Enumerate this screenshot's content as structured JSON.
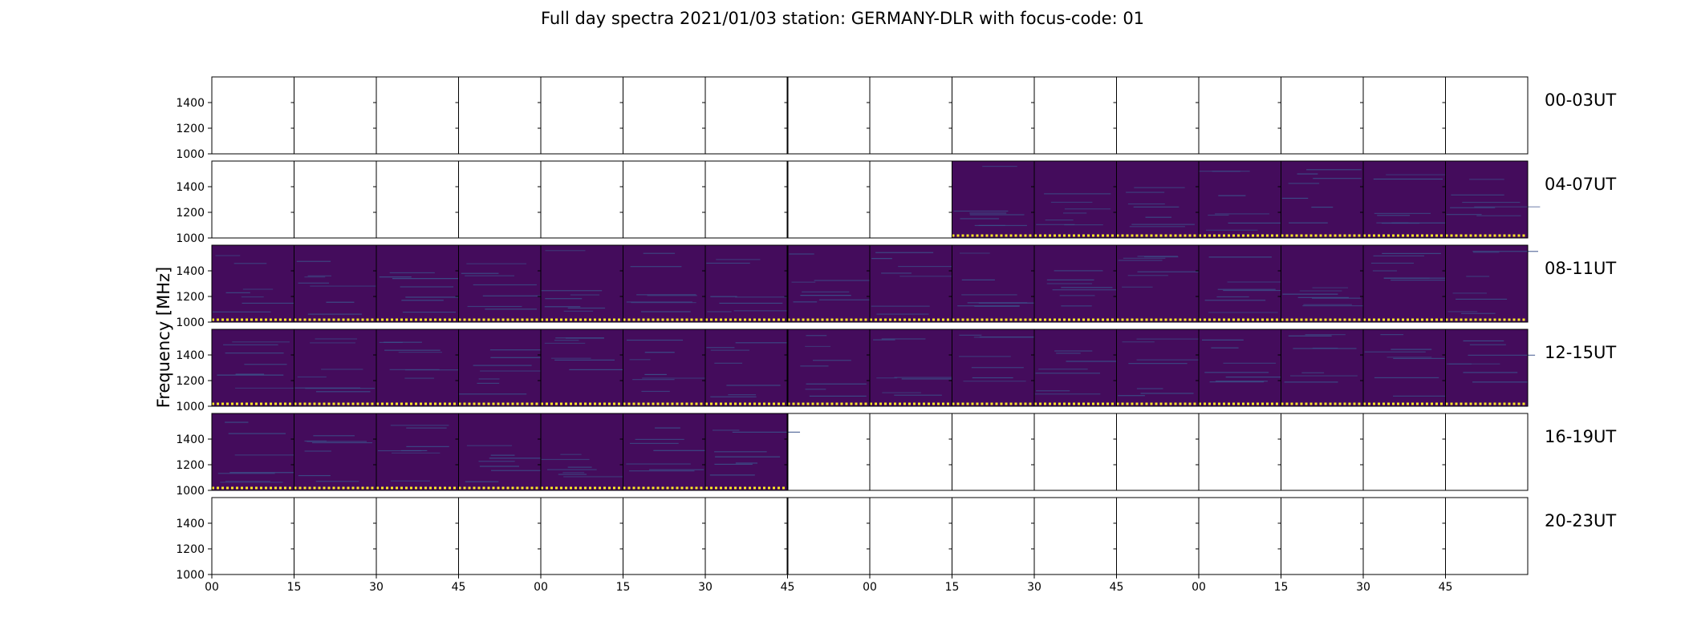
{
  "chart_data": {
    "type": "heatmap",
    "title": "Full day spectra 2021/01/03 station: GERMANY-DLR with focus-code: 01",
    "ylabel": "Frequency [MHz]",
    "xlabel": "",
    "ylim": [
      1000,
      1600
    ],
    "yticks": [
      1000,
      1200,
      1400
    ],
    "xtick_labels": [
      "00",
      "15",
      "30",
      "45",
      "00",
      "15",
      "30",
      "45",
      "00",
      "15",
      "30",
      "45",
      "00",
      "15",
      "30",
      "45"
    ],
    "panels_per_row": 16,
    "minutes_per_panel": 15,
    "colormap": "viridis",
    "colors": {
      "background": "#440c5c",
      "low_band": "#fde725",
      "line": "#3b528b"
    },
    "rows": [
      {
        "label": "00-03UT",
        "data_start_panel": null,
        "data_end_panel": null
      },
      {
        "label": "04-07UT",
        "data_start_panel": 9,
        "data_end_panel": 16
      },
      {
        "label": "08-11UT",
        "data_start_panel": 0,
        "data_end_panel": 16
      },
      {
        "label": "12-15UT",
        "data_start_panel": 0,
        "data_end_panel": 16
      },
      {
        "label": "16-19UT",
        "data_start_panel": 0,
        "data_end_panel": 7
      },
      {
        "label": "20-23UT",
        "data_start_panel": null,
        "data_end_panel": null
      }
    ]
  }
}
